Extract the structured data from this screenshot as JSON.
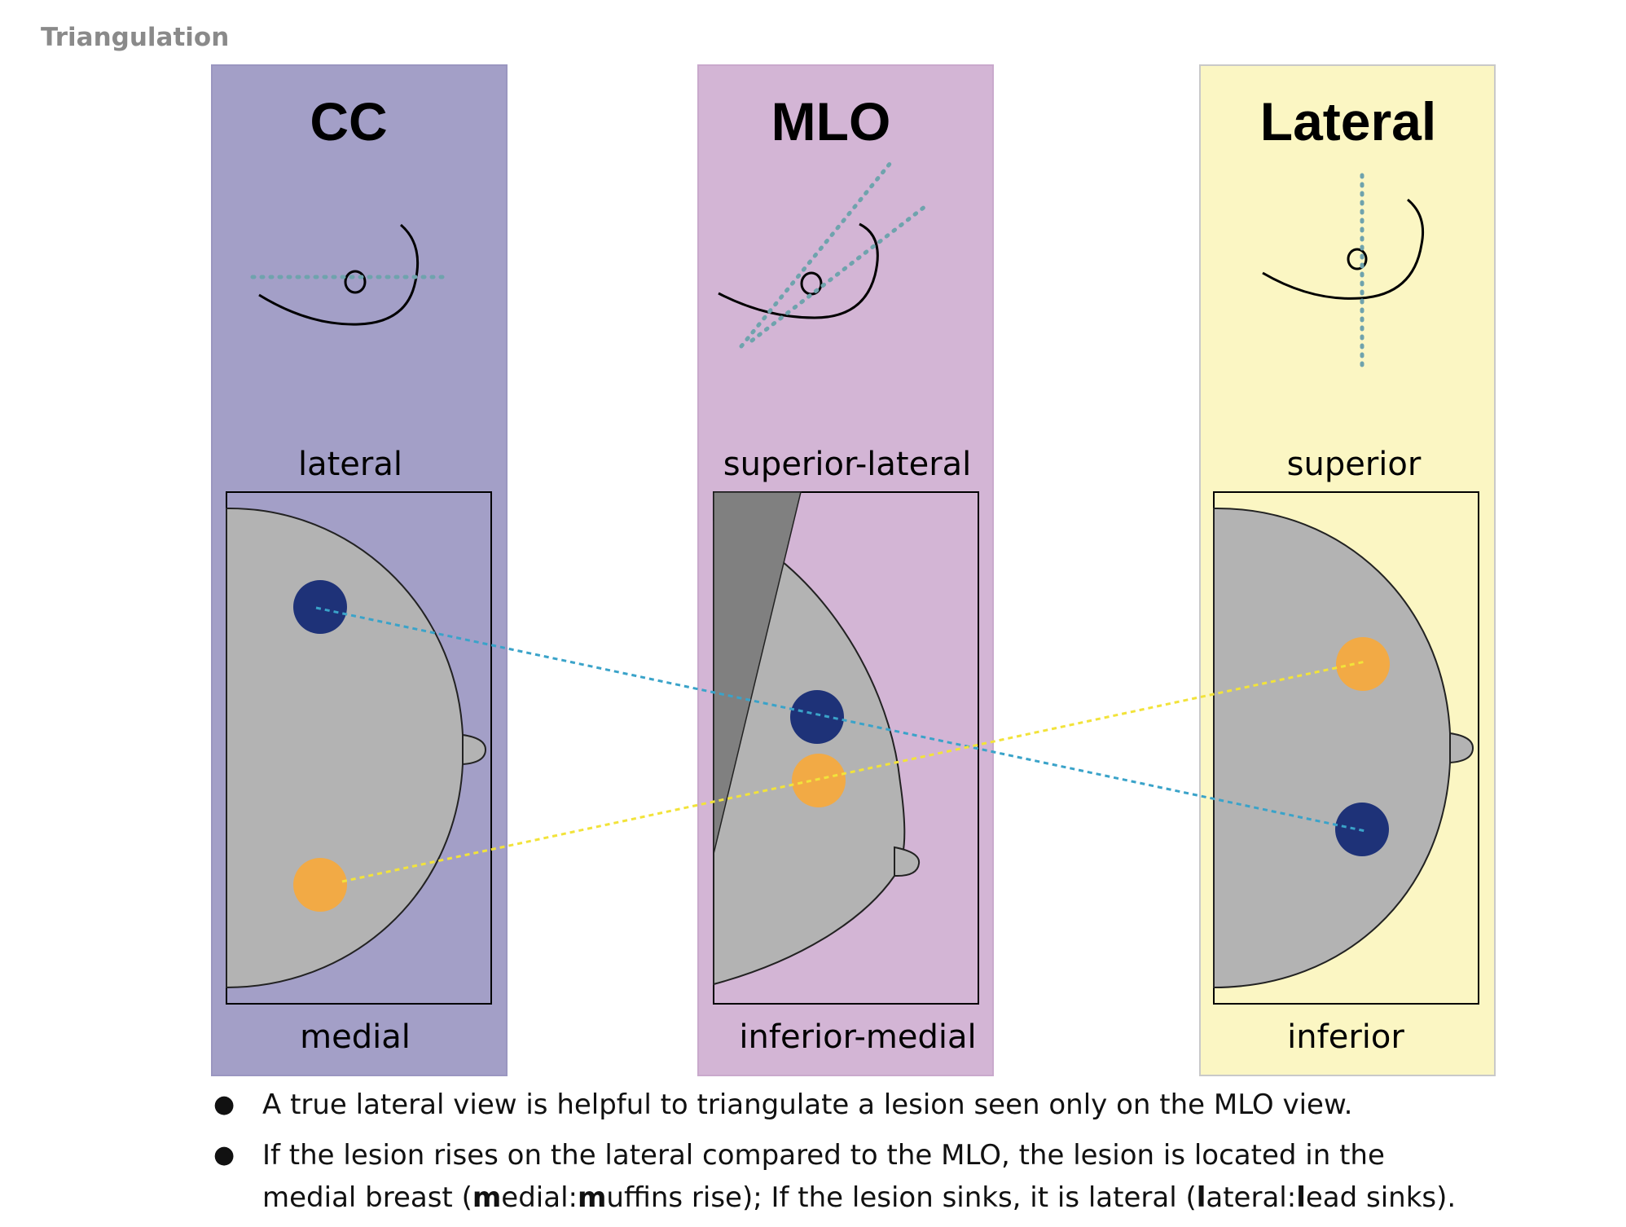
{
  "title": "Triangulation",
  "colors": {
    "cc_panel": "#a39fc7",
    "mlo_panel": "#d3b5d5",
    "lateral_panel": "#fbf6c3",
    "breast": "#b3b3b3",
    "pectoral": "#808080",
    "lesion_blue": "#1e3278",
    "lesion_orange": "#f2aa45",
    "line_blue": "#3aa3c9",
    "line_yellow": "#f2e33a",
    "guide_dots": "#6fa3ad"
  },
  "panels": {
    "cc": {
      "heading": "CC",
      "top_label": "lateral",
      "bottom_label": "medial"
    },
    "mlo": {
      "heading": "MLO",
      "top_label": "superior-lateral",
      "bottom_label": "inferior-medial"
    },
    "lateral": {
      "heading": "Lateral",
      "top_label": "superior",
      "bottom_label": "inferior"
    }
  },
  "bullets": [
    {
      "text": "A true lateral view is helpful to triangulate a lesion seen only on the MLO view."
    },
    {
      "line1": "If the lesion rises on the lateral compared to the MLO, the lesion is located in the",
      "l2_pre": "medial breast (",
      "l2_b1": "m",
      "l2_t1": "edial:",
      "l2_b2": "m",
      "l2_t2": "uffins rise); If the lesion sinks, it is lateral (",
      "l2_b3": "l",
      "l2_t3": "ateral:",
      "l2_b4": "l",
      "l2_t4": "ead sinks)."
    }
  ]
}
